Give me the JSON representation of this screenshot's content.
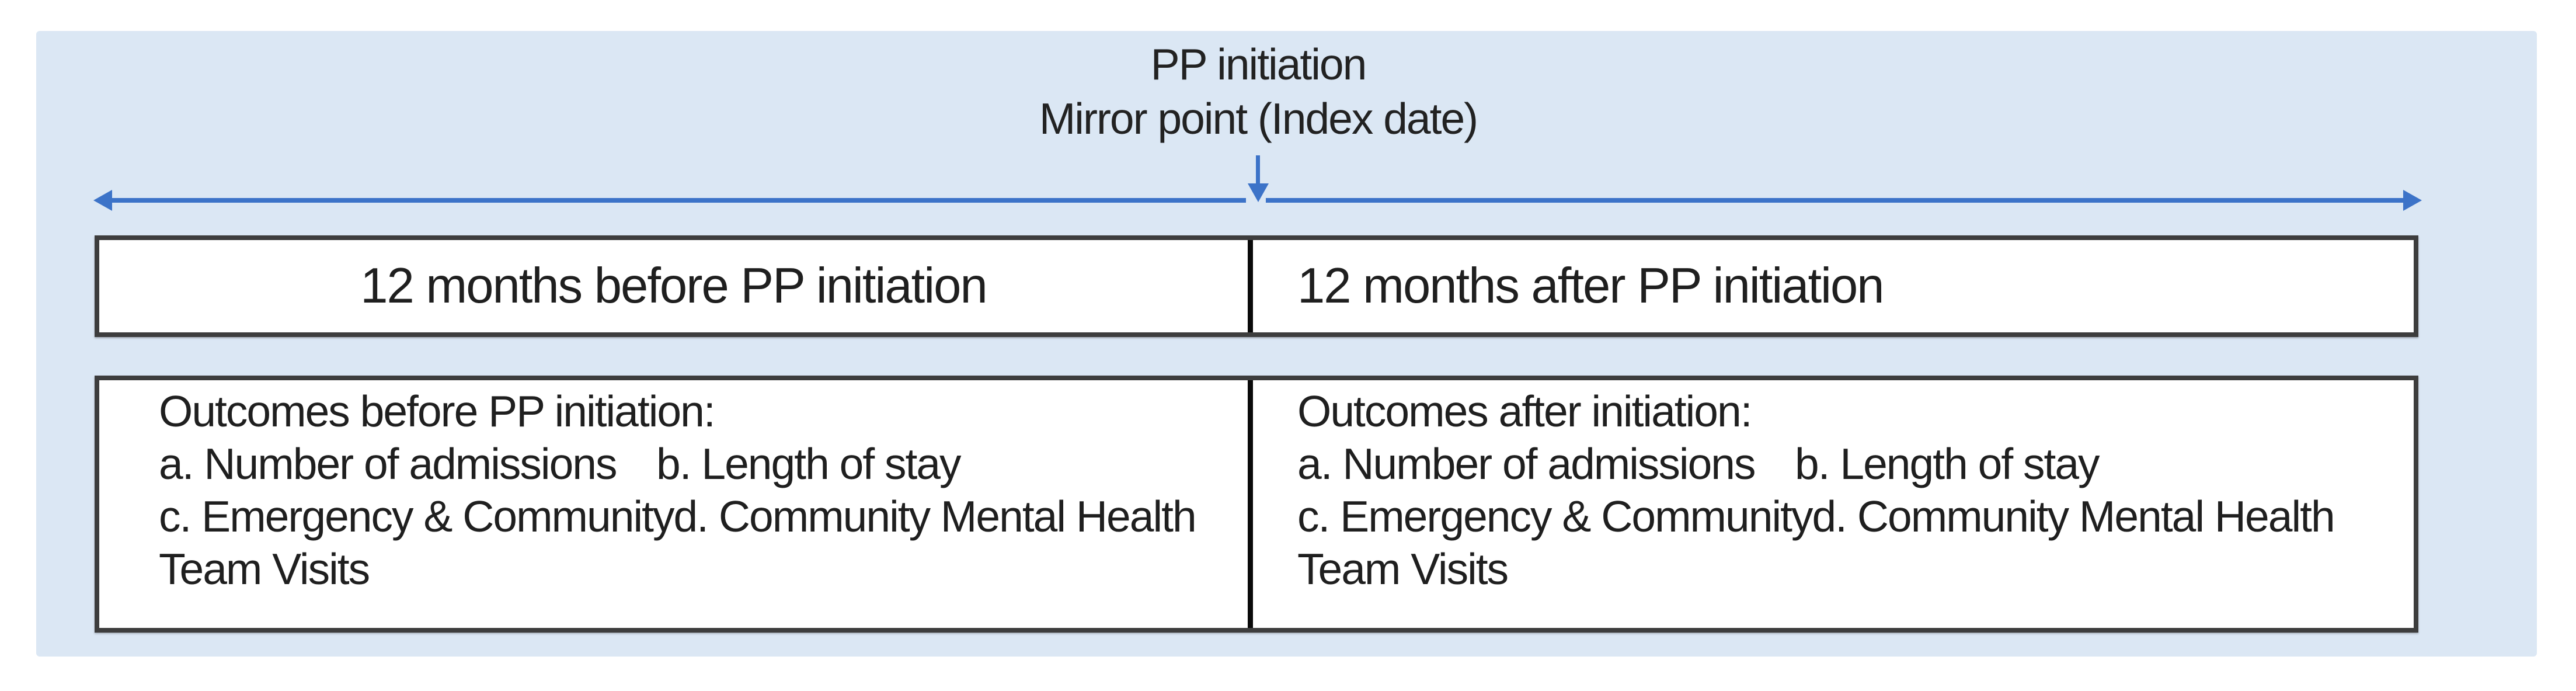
{
  "title": {
    "line1": "PP initiation",
    "line2": "Mirror point (Index date)"
  },
  "timeline_row": {
    "before_label": "12 months before PP initiation",
    "after_label": "12 months after PP initiation"
  },
  "outcomes_row": {
    "before": {
      "heading": "Outcomes before PP initiation:",
      "item_a": "a. Number of admissions",
      "item_b": "b. Length of stay",
      "item_c": "c. Emergency & Community",
      "item_d": "d. Community Mental Health",
      "wrap_line": "Team Visits"
    },
    "after": {
      "heading": "Outcomes after initiation:",
      "item_a": "a. Number of admissions",
      "item_b": "b. Length of stay",
      "item_c": "c. Emergency & Community",
      "item_d": "d. Community Mental Health",
      "wrap_line": "Team Visits"
    }
  },
  "colors": {
    "panel_bg": "#dbe7f4",
    "arrow_blue": "#3c73c8",
    "box_border": "#3d3d3d",
    "divider": "#0a0a0a",
    "box_bg": "#ffffff",
    "text": "#1f1f1f",
    "page_bg": "#ffffff"
  }
}
